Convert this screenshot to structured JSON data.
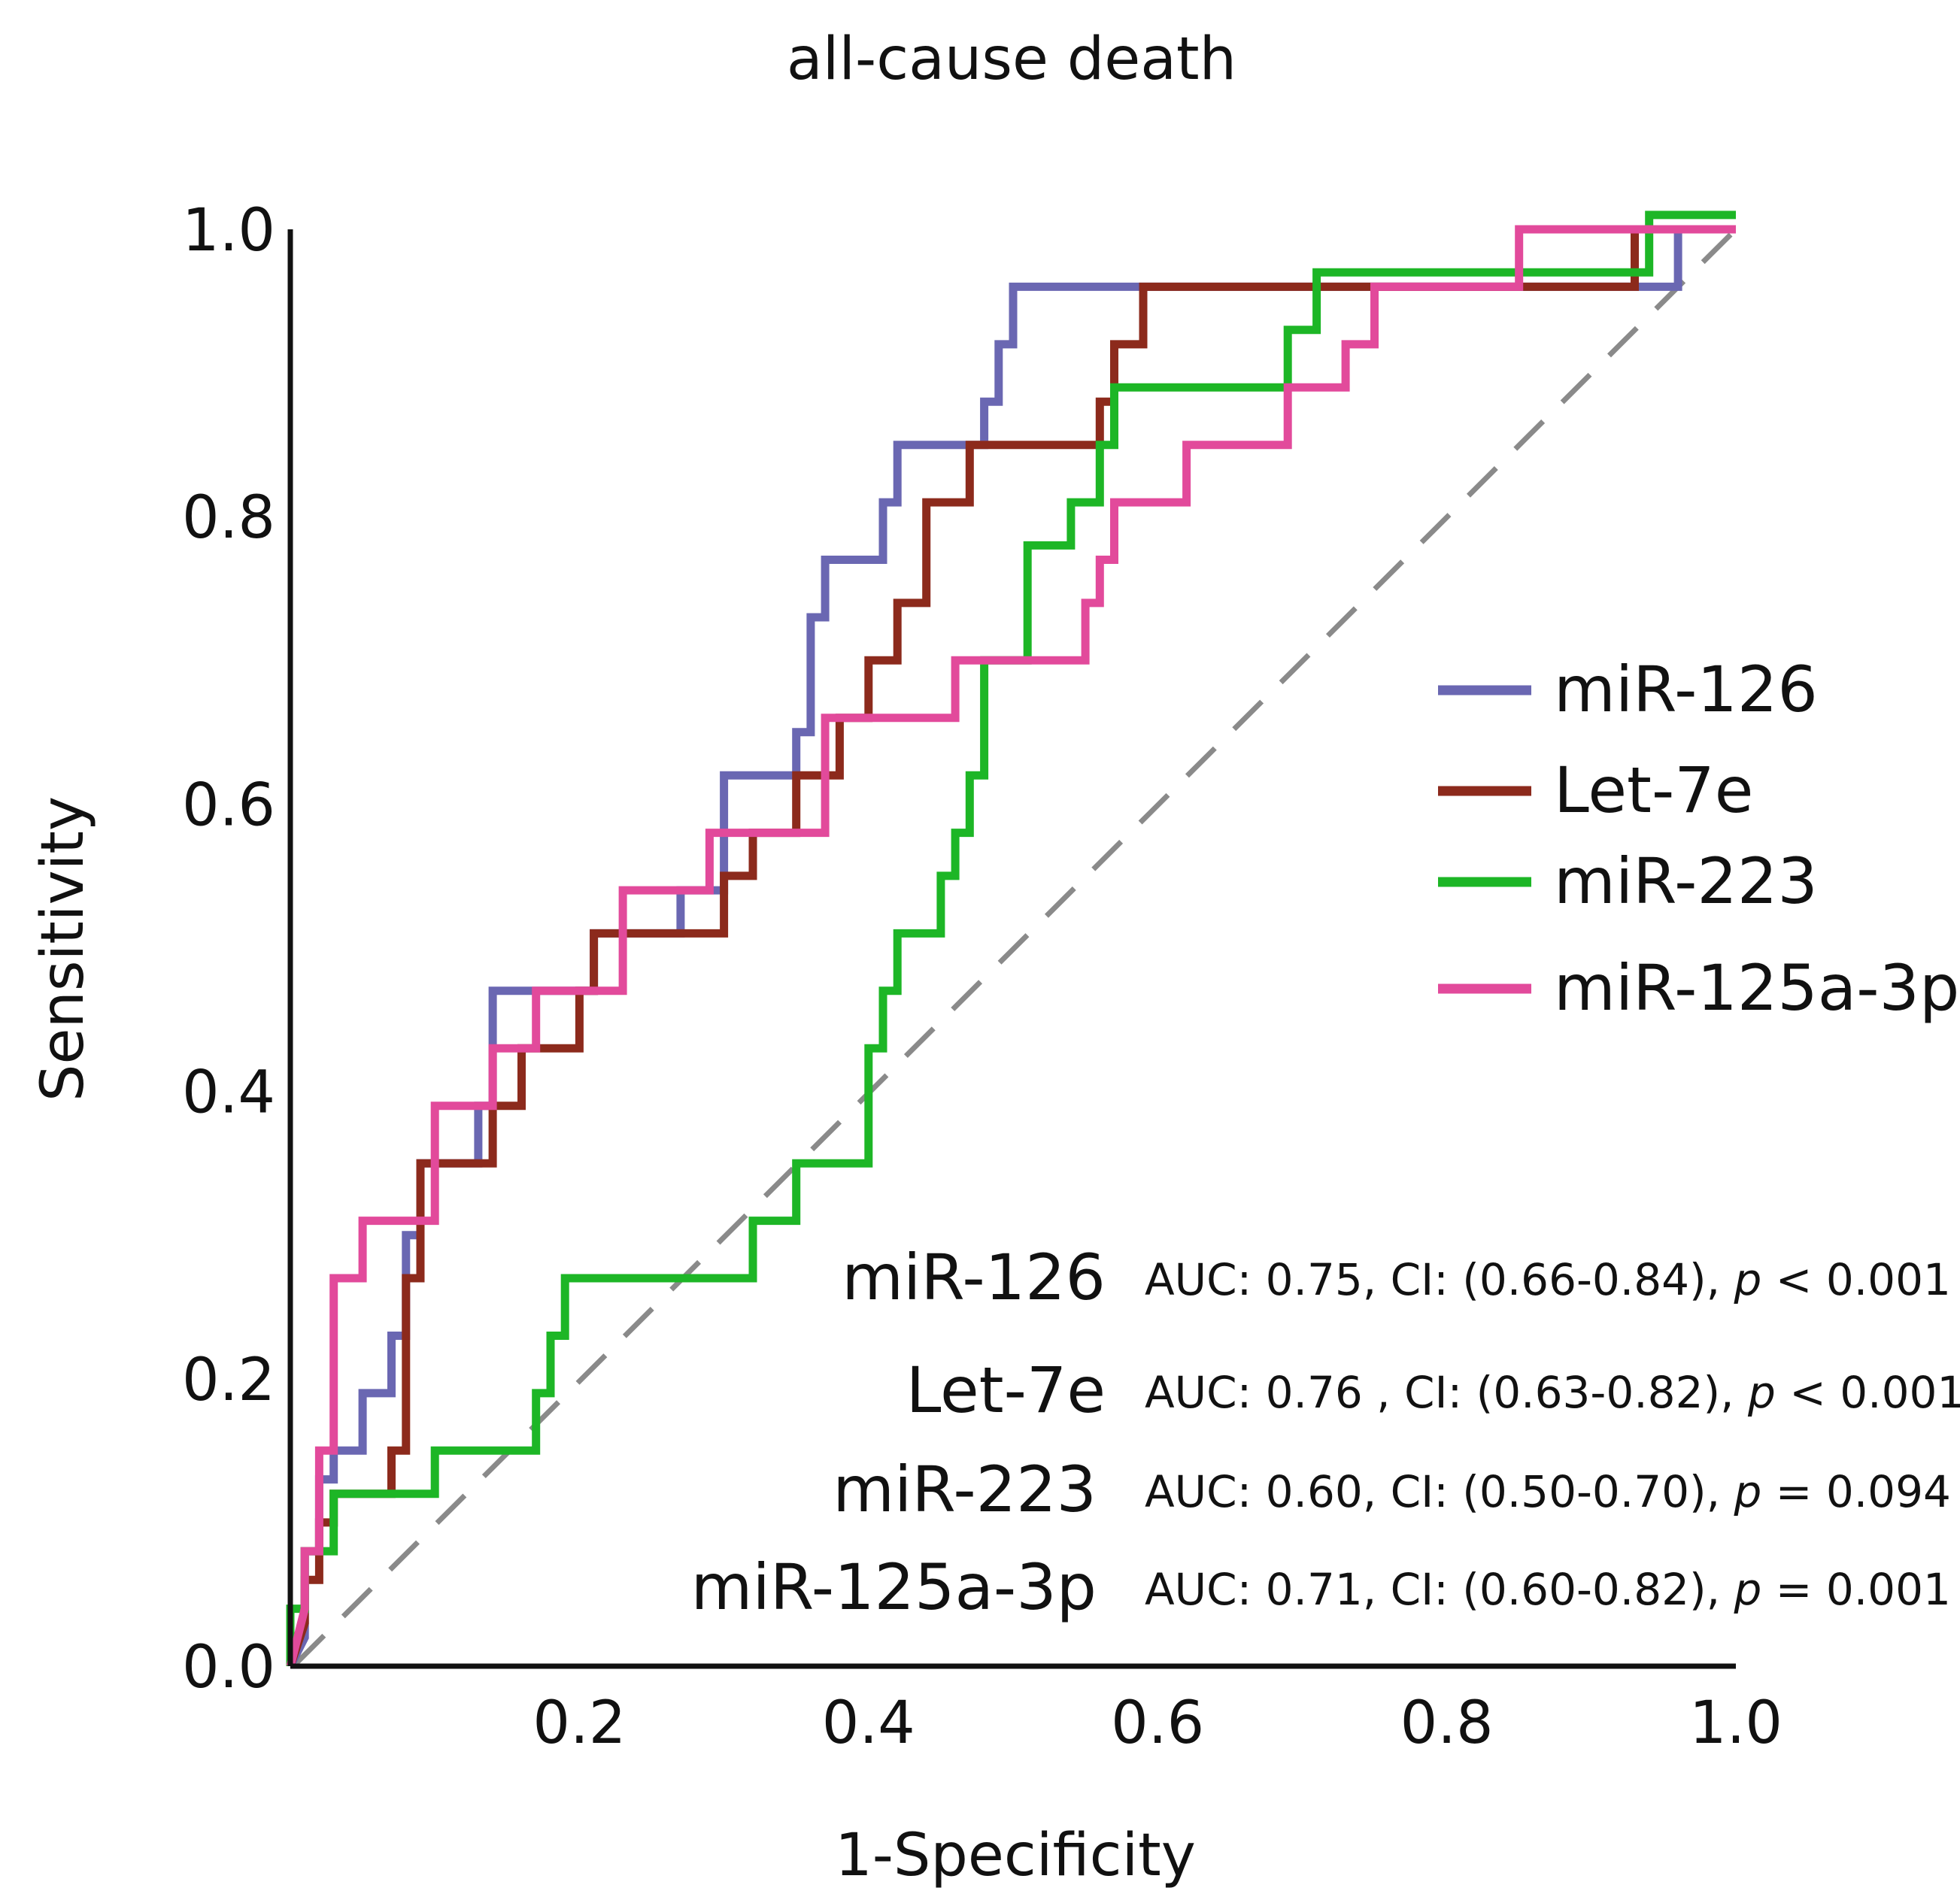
{
  "chart_data": {
    "type": "line",
    "title": "all-cause death",
    "xlabel": "1-Specificity",
    "ylabel": "Sensitivity",
    "xlim": [
      0,
      1
    ],
    "ylim": [
      0,
      1
    ],
    "x_ticks": [
      "0.2",
      "0.4",
      "0.6",
      "0.8",
      "1.0"
    ],
    "y_ticks": [
      "0.0",
      "0.2",
      "0.4",
      "0.6",
      "0.8",
      "1.0"
    ],
    "legend_position": "right",
    "reference_line": {
      "from": [
        0,
        0
      ],
      "to": [
        1,
        1
      ],
      "style": "dashed",
      "color": "#8a8a8a"
    },
    "series": [
      {
        "name": "miR-126",
        "color": "#6a67b2",
        "auc_text": "AUC: 0.75, CI: (0.66-0.84),",
        "p_label": "p",
        "p_text": "< 0.001",
        "points": [
          [
            0,
            0
          ],
          [
            0.01,
            0.02
          ],
          [
            0.01,
            0.08
          ],
          [
            0.02,
            0.08
          ],
          [
            0.02,
            0.13
          ],
          [
            0.03,
            0.13
          ],
          [
            0.03,
            0.15
          ],
          [
            0.05,
            0.15
          ],
          [
            0.05,
            0.19
          ],
          [
            0.07,
            0.19
          ],
          [
            0.07,
            0.23
          ],
          [
            0.08,
            0.23
          ],
          [
            0.08,
            0.3
          ],
          [
            0.09,
            0.3
          ],
          [
            0.09,
            0.35
          ],
          [
            0.13,
            0.35
          ],
          [
            0.13,
            0.39
          ],
          [
            0.14,
            0.39
          ],
          [
            0.14,
            0.47
          ],
          [
            0.21,
            0.47
          ],
          [
            0.21,
            0.51
          ],
          [
            0.27,
            0.51
          ],
          [
            0.27,
            0.54
          ],
          [
            0.3,
            0.54
          ],
          [
            0.3,
            0.62
          ],
          [
            0.35,
            0.62
          ],
          [
            0.35,
            0.65
          ],
          [
            0.36,
            0.65
          ],
          [
            0.36,
            0.73
          ],
          [
            0.37,
            0.73
          ],
          [
            0.37,
            0.77
          ],
          [
            0.41,
            0.77
          ],
          [
            0.41,
            0.81
          ],
          [
            0.42,
            0.81
          ],
          [
            0.42,
            0.85
          ],
          [
            0.48,
            0.85
          ],
          [
            0.48,
            0.88
          ],
          [
            0.49,
            0.88
          ],
          [
            0.49,
            0.92
          ],
          [
            0.5,
            0.92
          ],
          [
            0.5,
            0.96
          ],
          [
            0.96,
            0.96
          ],
          [
            0.96,
            1.0
          ],
          [
            1.0,
            1.0
          ]
        ]
      },
      {
        "name": "Let-7e",
        "color": "#8c2a1c",
        "auc_text": "AUC: 0.76 , CI: (0.63-0.82),",
        "p_label": "p",
        "p_text": "< 0.001",
        "points": [
          [
            0,
            0
          ],
          [
            0.01,
            0.03
          ],
          [
            0.01,
            0.06
          ],
          [
            0.02,
            0.06
          ],
          [
            0.02,
            0.1
          ],
          [
            0.03,
            0.1
          ],
          [
            0.03,
            0.12
          ],
          [
            0.07,
            0.12
          ],
          [
            0.07,
            0.15
          ],
          [
            0.08,
            0.15
          ],
          [
            0.08,
            0.27
          ],
          [
            0.09,
            0.27
          ],
          [
            0.09,
            0.35
          ],
          [
            0.14,
            0.35
          ],
          [
            0.14,
            0.39
          ],
          [
            0.16,
            0.39
          ],
          [
            0.16,
            0.43
          ],
          [
            0.2,
            0.43
          ],
          [
            0.2,
            0.47
          ],
          [
            0.21,
            0.47
          ],
          [
            0.21,
            0.51
          ],
          [
            0.3,
            0.51
          ],
          [
            0.3,
            0.55
          ],
          [
            0.32,
            0.55
          ],
          [
            0.32,
            0.58
          ],
          [
            0.35,
            0.58
          ],
          [
            0.35,
            0.62
          ],
          [
            0.38,
            0.62
          ],
          [
            0.38,
            0.66
          ],
          [
            0.4,
            0.66
          ],
          [
            0.4,
            0.7
          ],
          [
            0.42,
            0.7
          ],
          [
            0.42,
            0.74
          ],
          [
            0.44,
            0.74
          ],
          [
            0.44,
            0.81
          ],
          [
            0.47,
            0.81
          ],
          [
            0.47,
            0.85
          ],
          [
            0.56,
            0.85
          ],
          [
            0.56,
            0.88
          ],
          [
            0.57,
            0.88
          ],
          [
            0.57,
            0.92
          ],
          [
            0.59,
            0.92
          ],
          [
            0.59,
            0.96
          ],
          [
            0.93,
            0.96
          ],
          [
            0.93,
            1.0
          ],
          [
            1.0,
            1.0
          ]
        ]
      },
      {
        "name": "miR-223",
        "color": "#1db626",
        "auc_text": "AUC: 0.60, CI: (0.50-0.70),",
        "p_label": "p",
        "p_text": "= 0.094",
        "points": [
          [
            0,
            0
          ],
          [
            0,
            0.04
          ],
          [
            0.01,
            0.04
          ],
          [
            0.01,
            0.08
          ],
          [
            0.03,
            0.08
          ],
          [
            0.03,
            0.12
          ],
          [
            0.1,
            0.12
          ],
          [
            0.1,
            0.15
          ],
          [
            0.17,
            0.15
          ],
          [
            0.17,
            0.19
          ],
          [
            0.18,
            0.19
          ],
          [
            0.18,
            0.23
          ],
          [
            0.19,
            0.23
          ],
          [
            0.19,
            0.27
          ],
          [
            0.32,
            0.27
          ],
          [
            0.32,
            0.31
          ],
          [
            0.35,
            0.31
          ],
          [
            0.35,
            0.35
          ],
          [
            0.4,
            0.35
          ],
          [
            0.4,
            0.43
          ],
          [
            0.41,
            0.43
          ],
          [
            0.41,
            0.47
          ],
          [
            0.42,
            0.47
          ],
          [
            0.42,
            0.51
          ],
          [
            0.45,
            0.51
          ],
          [
            0.45,
            0.55
          ],
          [
            0.46,
            0.55
          ],
          [
            0.46,
            0.58
          ],
          [
            0.47,
            0.58
          ],
          [
            0.47,
            0.62
          ],
          [
            0.48,
            0.62
          ],
          [
            0.48,
            0.7
          ],
          [
            0.51,
            0.7
          ],
          [
            0.51,
            0.78
          ],
          [
            0.54,
            0.78
          ],
          [
            0.54,
            0.81
          ],
          [
            0.56,
            0.81
          ],
          [
            0.56,
            0.85
          ],
          [
            0.57,
            0.85
          ],
          [
            0.57,
            0.89
          ],
          [
            0.69,
            0.89
          ],
          [
            0.69,
            0.93
          ],
          [
            0.71,
            0.93
          ],
          [
            0.71,
            0.97
          ],
          [
            0.94,
            0.97
          ],
          [
            0.94,
            1.01
          ],
          [
            1.0,
            1.01
          ]
        ]
      },
      {
        "name": "miR-125a-3p",
        "color": "#e24a9b",
        "auc_text": "AUC: 0.71, CI: (0.60-0.82),",
        "p_label": "p",
        "p_text": "= 0.001",
        "points": [
          [
            0,
            0
          ],
          [
            0.01,
            0.04
          ],
          [
            0.01,
            0.08
          ],
          [
            0.02,
            0.08
          ],
          [
            0.02,
            0.15
          ],
          [
            0.03,
            0.15
          ],
          [
            0.03,
            0.19
          ],
          [
            0.03,
            0.19
          ],
          [
            0.03,
            0.27
          ],
          [
            0.05,
            0.27
          ],
          [
            0.05,
            0.31
          ],
          [
            0.1,
            0.31
          ],
          [
            0.1,
            0.39
          ],
          [
            0.14,
            0.39
          ],
          [
            0.14,
            0.43
          ],
          [
            0.17,
            0.43
          ],
          [
            0.17,
            0.47
          ],
          [
            0.23,
            0.47
          ],
          [
            0.23,
            0.54
          ],
          [
            0.29,
            0.54
          ],
          [
            0.29,
            0.58
          ],
          [
            0.37,
            0.58
          ],
          [
            0.37,
            0.66
          ],
          [
            0.46,
            0.66
          ],
          [
            0.46,
            0.7
          ],
          [
            0.55,
            0.7
          ],
          [
            0.55,
            0.74
          ],
          [
            0.56,
            0.74
          ],
          [
            0.56,
            0.77
          ],
          [
            0.57,
            0.77
          ],
          [
            0.57,
            0.81
          ],
          [
            0.62,
            0.81
          ],
          [
            0.62,
            0.85
          ],
          [
            0.69,
            0.85
          ],
          [
            0.69,
            0.89
          ],
          [
            0.73,
            0.89
          ],
          [
            0.73,
            0.92
          ],
          [
            0.75,
            0.92
          ],
          [
            0.75,
            0.96
          ],
          [
            0.85,
            0.96
          ],
          [
            0.85,
            1.0
          ],
          [
            1.0,
            1.0
          ]
        ]
      }
    ]
  }
}
